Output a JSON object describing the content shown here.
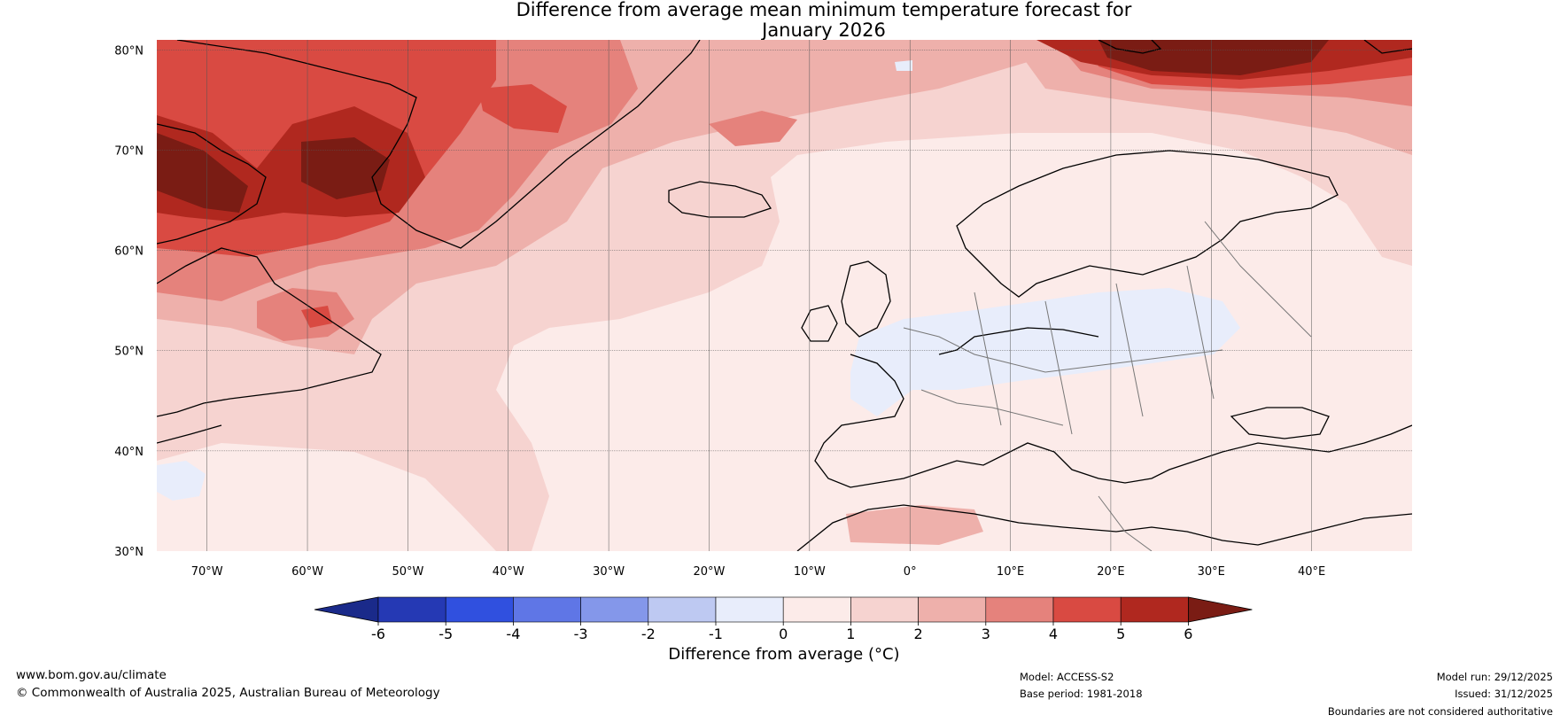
{
  "title_line1": "Difference from average mean minimum temperature forecast for",
  "title_line2": "January 2026",
  "lat_labels": [
    "80°N",
    "70°N",
    "60°N",
    "50°N",
    "40°N",
    "30°N"
  ],
  "lon_labels": [
    "70°W",
    "60°W",
    "50°W",
    "40°W",
    "30°W",
    "20°W",
    "10°W",
    "0°",
    "10°E",
    "20°E",
    "30°E",
    "40°E"
  ],
  "colorbar": {
    "ticks": [
      "-6",
      "-5",
      "-4",
      "-3",
      "-2",
      "-1",
      "0",
      "1",
      "2",
      "3",
      "4",
      "5",
      "6"
    ],
    "colors": [
      "#1a2a8a",
      "#2539b4",
      "#3050df",
      "#5f76e6",
      "#8497ea",
      "#bec9f2",
      "#e8edfb",
      "#fcebe9",
      "#f6d3d0",
      "#eeb0ab",
      "#e5827c",
      "#d94a42",
      "#b0281f",
      "#7a1c14"
    ],
    "label": "Difference from average (°C)"
  },
  "footer": {
    "site": "www.bom.gov.au/climate",
    "copyright": "© Commonwealth of Australia 2025, Australian Bureau of Meteorology",
    "model": "Model: ACCESS-S2",
    "base_period": "Base period: 1981-2018",
    "model_run": "Model run: 29/12/2025",
    "issued": "Issued: 31/12/2025",
    "disclaimer": "Boundaries are not considered authoritative"
  }
}
